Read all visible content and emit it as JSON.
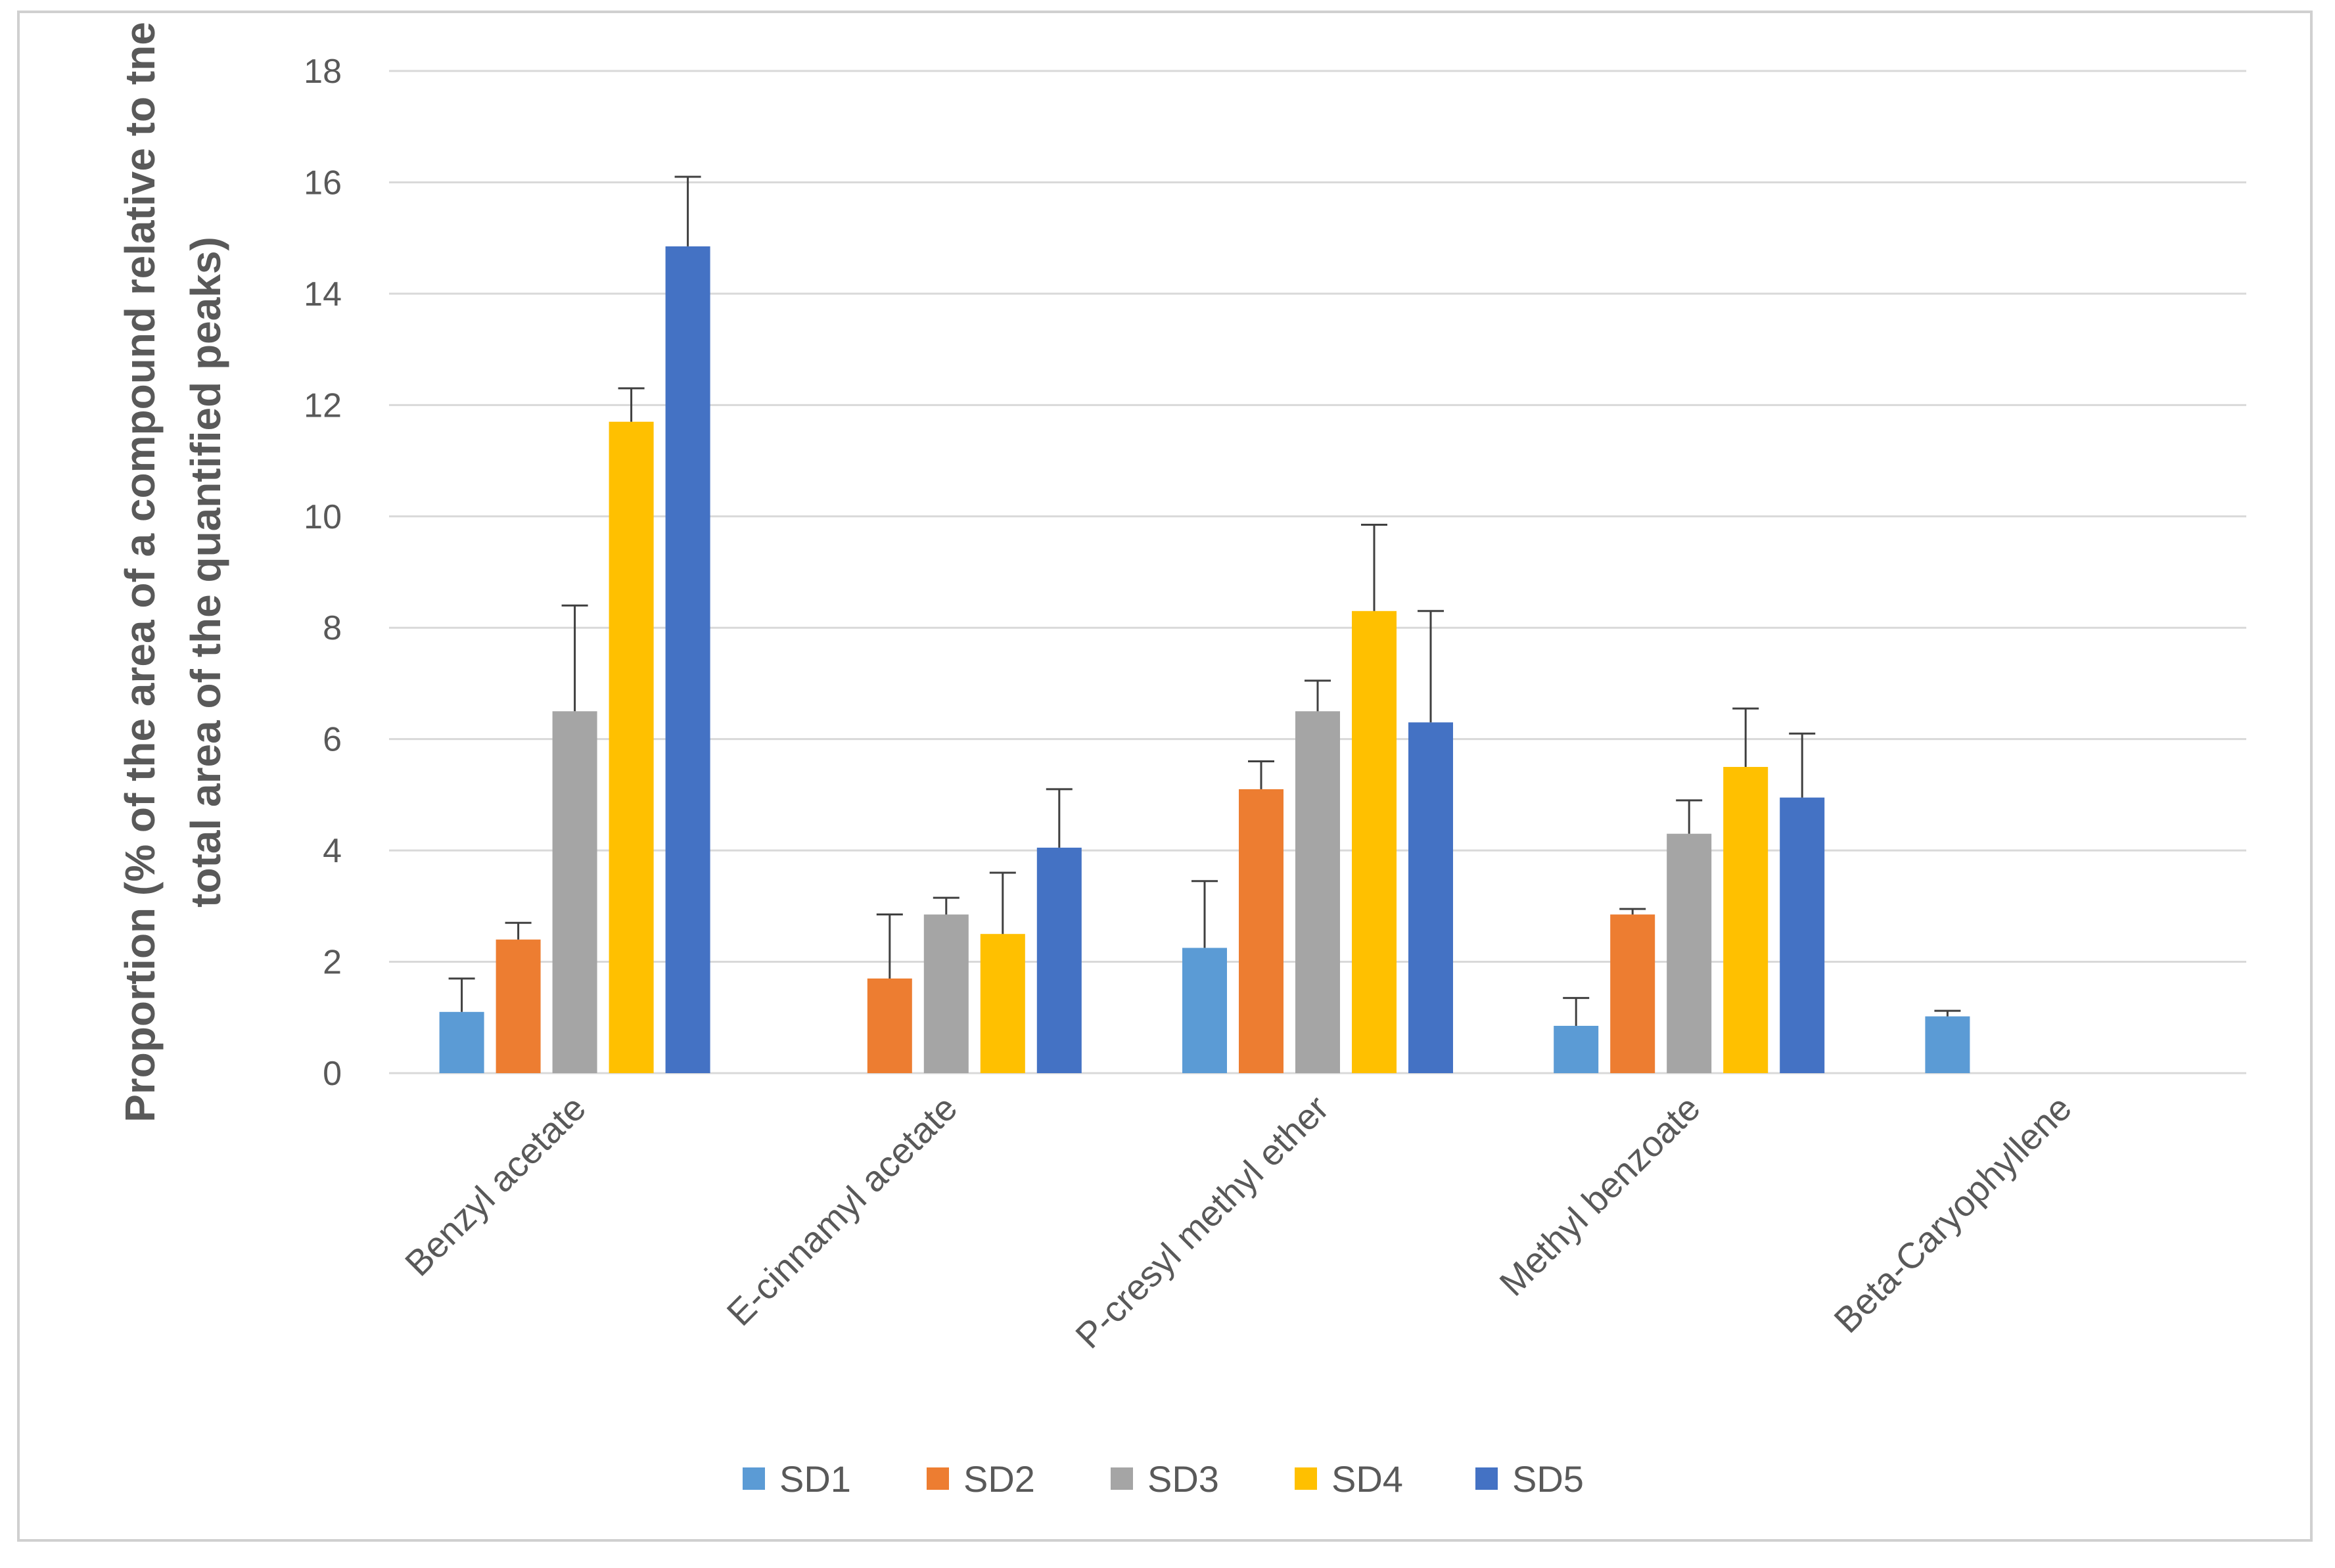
{
  "chart_data": {
    "type": "bar",
    "title": "",
    "xlabel": "",
    "ylabel_lines": [
      "Proportion (% of the area of a compound relative to tne",
      "total area of the quantified peaks)"
    ],
    "ylim": [
      0,
      18
    ],
    "yticks": [
      0,
      2,
      4,
      6,
      8,
      10,
      12,
      14,
      16,
      18
    ],
    "grid": true,
    "legend_position": "bottom",
    "categories": [
      "Benzyl acetate",
      "E-cinnamyl acetate",
      "P-cresyl methyl ether",
      "Methyl benzoate",
      "Beta-Caryophyllene"
    ],
    "series": [
      {
        "name": "SD1",
        "color": "#5B9BD5",
        "values": [
          1.1,
          0,
          2.25,
          0.85,
          1.02
        ],
        "errors": [
          0.6,
          0,
          1.2,
          0.5,
          0.1
        ]
      },
      {
        "name": "SD2",
        "color": "#ED7D31",
        "values": [
          2.4,
          1.7,
          5.1,
          2.85,
          0
        ],
        "errors": [
          0.3,
          1.15,
          0.5,
          0.1,
          0
        ]
      },
      {
        "name": "SD3",
        "color": "#A5A5A5",
        "values": [
          6.5,
          2.85,
          6.5,
          4.3,
          0
        ],
        "errors": [
          1.9,
          0.3,
          0.55,
          0.6,
          0
        ]
      },
      {
        "name": "SD4",
        "color": "#FFC000",
        "values": [
          11.7,
          2.5,
          8.3,
          5.5,
          0
        ],
        "errors": [
          0.6,
          1.1,
          1.55,
          1.05,
          0
        ]
      },
      {
        "name": "SD5",
        "color": "#4472C4",
        "values": [
          14.85,
          4.05,
          6.3,
          4.95,
          0
        ],
        "errors": [
          1.25,
          1.05,
          2.0,
          1.15,
          0
        ]
      }
    ]
  }
}
